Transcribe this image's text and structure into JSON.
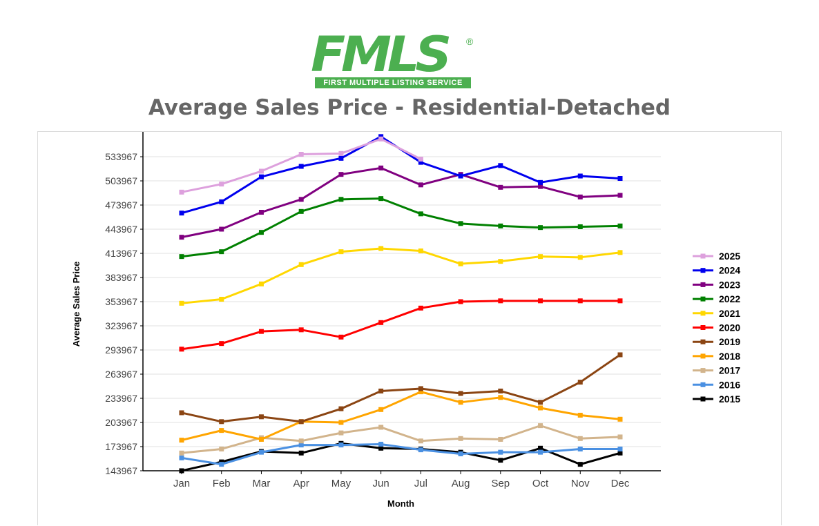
{
  "logo": {
    "text": "FMLS",
    "registered": "®",
    "subtitle": "FIRST MULTIPLE LISTING SERVICE"
  },
  "page_title": "Average Sales Price - Residential-Detached",
  "chart_data": {
    "type": "line",
    "xlabel": "Month",
    "ylabel": "Average Sales Price",
    "categories": [
      "Jan",
      "Feb",
      "Mar",
      "Apr",
      "May",
      "Jun",
      "Jul",
      "Aug",
      "Sep",
      "Oct",
      "Nov",
      "Dec"
    ],
    "yticks": [
      143967,
      173967,
      203967,
      233967,
      263967,
      293967,
      323967,
      353967,
      383967,
      413967,
      443967,
      473967,
      503967,
      533967
    ],
    "ylim": [
      143967,
      558000
    ],
    "grid": true,
    "legend_position": "right",
    "series": [
      {
        "name": "2025",
        "color": "#dda0dd",
        "values": [
          490000,
          500000,
          516000,
          537000,
          538000,
          556000,
          531000,
          null,
          null,
          null,
          null,
          null
        ]
      },
      {
        "name": "2024",
        "color": "#0000ee",
        "values": [
          464000,
          478000,
          509000,
          522000,
          532000,
          559000,
          527000,
          510000,
          523000,
          502000,
          510000,
          507000
        ]
      },
      {
        "name": "2023",
        "color": "#800080",
        "values": [
          434000,
          444000,
          465000,
          481000,
          512000,
          520000,
          499000,
          512000,
          496000,
          497000,
          484000,
          486000
        ]
      },
      {
        "name": "2022",
        "color": "#008000",
        "values": [
          410000,
          416000,
          440000,
          466000,
          481000,
          482000,
          463000,
          451000,
          448000,
          446000,
          447000,
          448000
        ]
      },
      {
        "name": "2021",
        "color": "#ffd700",
        "values": [
          352000,
          357000,
          376000,
          400000,
          416000,
          420000,
          417000,
          401000,
          404000,
          410000,
          409000,
          415000
        ]
      },
      {
        "name": "2020",
        "color": "#ff0000",
        "values": [
          295000,
          302000,
          317000,
          319000,
          310000,
          328000,
          346000,
          354000,
          355000,
          355000,
          355000,
          355000
        ]
      },
      {
        "name": "2019",
        "color": "#8b4513",
        "values": [
          216000,
          205000,
          211000,
          205000,
          221000,
          243000,
          246000,
          240000,
          243000,
          229000,
          254000,
          288000
        ]
      },
      {
        "name": "2018",
        "color": "#ffa500",
        "values": [
          182000,
          194000,
          183000,
          205000,
          204000,
          220000,
          242000,
          229000,
          235000,
          222000,
          213000,
          208000
        ]
      },
      {
        "name": "2017",
        "color": "#d2b48c",
        "values": [
          166000,
          171000,
          185000,
          181000,
          191000,
          198000,
          181000,
          184000,
          183000,
          200000,
          184000,
          186000
        ]
      },
      {
        "name": "2016",
        "color": "#4a90e2",
        "values": [
          160000,
          152000,
          167000,
          176000,
          176000,
          177000,
          170000,
          165000,
          167000,
          167000,
          171000,
          171000
        ]
      },
      {
        "name": "2015",
        "color": "#000000",
        "values": [
          144000,
          155000,
          168000,
          166000,
          178000,
          172000,
          171000,
          167000,
          157000,
          172000,
          152000,
          166000
        ]
      }
    ]
  }
}
